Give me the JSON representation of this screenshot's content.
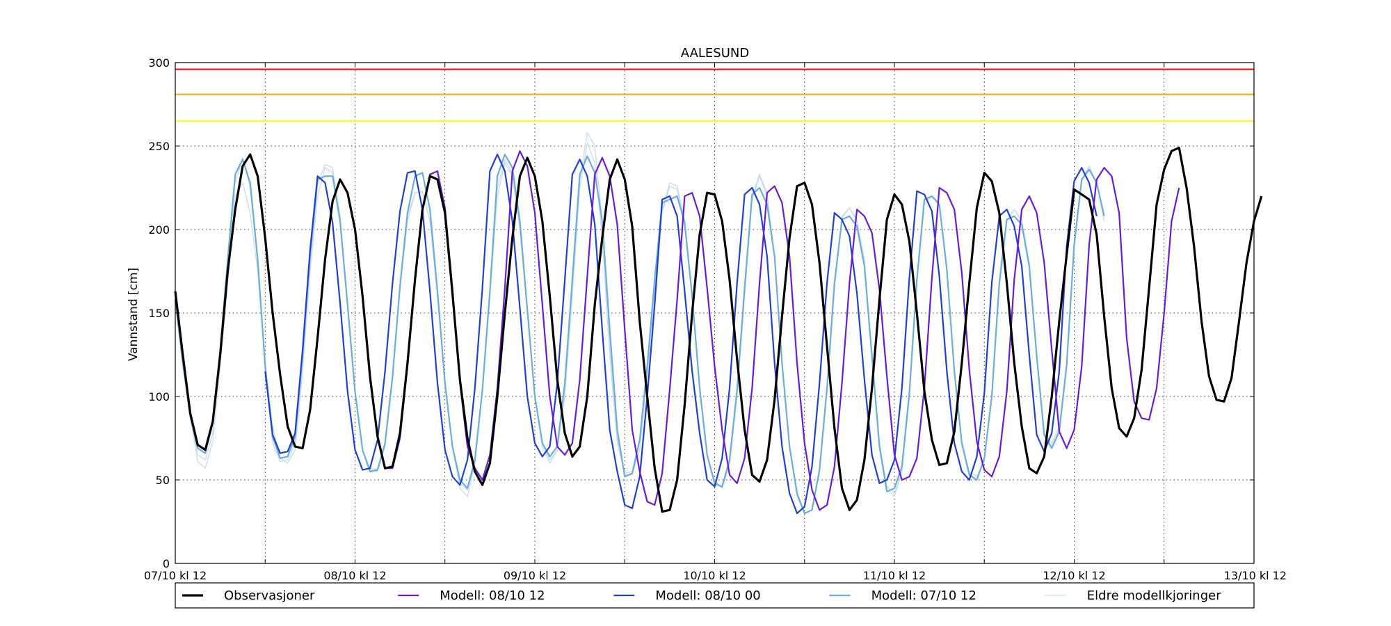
{
  "chart_data": {
    "type": "line",
    "title": "AALESUND",
    "xlabel": "",
    "ylabel": "Vannstand [cm]",
    "ylim": [
      0,
      300
    ],
    "yticks": [
      0,
      50,
      100,
      150,
      200,
      250,
      300
    ],
    "xlim": [
      0,
      144
    ],
    "xticks": [
      {
        "value": 0,
        "label": "07/10 kl 12"
      },
      {
        "value": 24,
        "label": "08/10 kl 12"
      },
      {
        "value": 48,
        "label": "09/10 kl 12"
      },
      {
        "value": 72,
        "label": "10/10 kl 12"
      },
      {
        "value": 96,
        "label": "11/10 kl 12"
      },
      {
        "value": 120,
        "label": "12/10 kl 12"
      },
      {
        "value": 144,
        "label": "13/10 kl 12"
      }
    ],
    "minor_xticks": [
      12,
      36,
      60,
      84,
      108,
      132
    ],
    "grid": true,
    "legend_position": "bottom",
    "threshold_lines": [
      {
        "value": 296,
        "color": "#ff0000"
      },
      {
        "value": 281,
        "color": "#ffa500"
      },
      {
        "value": 265,
        "color": "#ffff00"
      }
    ],
    "series": [
      {
        "name": "Eldre modellkjoringer",
        "color": "#c6dbef",
        "width": 1.3,
        "x_start": 0,
        "values": [
          158,
          120,
          88,
          61,
          57,
          73,
          118,
          168,
          220,
          228,
          210,
          175,
          120,
          82,
          63,
          60,
          68,
          115,
          175,
          220,
          237,
          234,
          205,
          155,
          102,
          68,
          57,
          56,
          70,
          110,
          165,
          205,
          222,
          223,
          205,
          160,
          110,
          70,
          48,
          44,
          60,
          103,
          160,
          220,
          240,
          232,
          200,
          150,
          100,
          72,
          62,
          68,
          100,
          160,
          225,
          252,
          240,
          195,
          125,
          72,
          54,
          55,
          68,
          112,
          165,
          210,
          226,
          224,
          205,
          160,
          105,
          65,
          50,
          45,
          60,
          100,
          160,
          218,
          232,
          220,
          183,
          120,
          70,
          40,
          30,
          32,
          55,
          105,
          165,
          207,
          213,
          205,
          180,
          125,
          72,
          46,
          42,
          55,
          100,
          168,
          215,
          220,
          215,
          175,
          115,
          73,
          55,
          52,
          62,
          100,
          165,
          205,
          212,
          205,
          180,
          125,
          78,
          72,
          82,
          120,
          190,
          230,
          238,
          228,
          205
        ]
      },
      {
        "name": "Eldre modellkjoringer",
        "color": "#c6dbef",
        "width": 1.3,
        "x_start": 0,
        "values": [
          158,
          120,
          88,
          65,
          62,
          78,
          122,
          175,
          228,
          243,
          225,
          180,
          115,
          72,
          61,
          62,
          72,
          118,
          178,
          227,
          239,
          237,
          208,
          157,
          103,
          68,
          56,
          55,
          70,
          111,
          166,
          208,
          222,
          222,
          205,
          160,
          108,
          70,
          45,
          40,
          60,
          102,
          162,
          225,
          242,
          234,
          202,
          150,
          100,
          70,
          60,
          68,
          102,
          162,
          230,
          258,
          250,
          205,
          130,
          75,
          53,
          53,
          68,
          112,
          165,
          212,
          228,
          226,
          206,
          160,
          105,
          65,
          48,
          45,
          60,
          102,
          162,
          220,
          233,
          222,
          184,
          120,
          70,
          42,
          30,
          32,
          55,
          105,
          165,
          208,
          213,
          206,
          182,
          125,
          72,
          44,
          40,
          55,
          100,
          168,
          218,
          220,
          216,
          176,
          115,
          72,
          54,
          50,
          62,
          100,
          165,
          206,
          212,
          206,
          180,
          125,
          78,
          70,
          80,
          120,
          190,
          230,
          238,
          228,
          205
        ]
      },
      {
        "name": "Modell: 07/10 12",
        "color": "#6baed6",
        "width": 2.2,
        "x_start": 0,
        "values": [
          158,
          120,
          88,
          69,
          66,
          84,
          128,
          182,
          233,
          242,
          228,
          182,
          118,
          76,
          63,
          64,
          76,
          125,
          185,
          230,
          232,
          232,
          205,
          155,
          103,
          68,
          55,
          56,
          72,
          112,
          166,
          210,
          232,
          234,
          212,
          163,
          108,
          70,
          50,
          45,
          62,
          104,
          163,
          232,
          245,
          237,
          205,
          152,
          100,
          72,
          64,
          70,
          108,
          170,
          233,
          244,
          234,
          205,
          140,
          80,
          52,
          54,
          74,
          118,
          170,
          216,
          218,
          220,
          204,
          160,
          105,
          65,
          48,
          46,
          62,
          104,
          165,
          221,
          225,
          215,
          184,
          120,
          70,
          42,
          30,
          32,
          56,
          105,
          168,
          206,
          208,
          202,
          178,
          124,
          70,
          43,
          45,
          58,
          102,
          170,
          218,
          220,
          215,
          176,
          115,
          72,
          53,
          50,
          63,
          100,
          168,
          206,
          208,
          203,
          178,
          124,
          77,
          69,
          79,
          119,
          191,
          230,
          236,
          228,
          208
        ]
      },
      {
        "name": "Modell: 08/10 00",
        "color": "#2040d0",
        "width": 2.2,
        "x_start": 12,
        "values": [
          115,
          77,
          66,
          67,
          78,
          128,
          188,
          232,
          228,
          204,
          156,
          103,
          68,
          56,
          57,
          74,
          115,
          168,
          211,
          234,
          235,
          212,
          163,
          108,
          68,
          52,
          47,
          62,
          105,
          165,
          235,
          245,
          235,
          205,
          153,
          100,
          72,
          64,
          70,
          108,
          170,
          233,
          242,
          232,
          203,
          140,
          80,
          55,
          35,
          33,
          52,
          100,
          155,
          218,
          220,
          208,
          163,
          115,
          78,
          50,
          46,
          63,
          105,
          168,
          221,
          225,
          215,
          184,
          120,
          70,
          42,
          30,
          34,
          58,
          108,
          168,
          210,
          206,
          196,
          162,
          110,
          65,
          48,
          50,
          62,
          105,
          171,
          223,
          221,
          211,
          172,
          115,
          72,
          55,
          50,
          64,
          102,
          168,
          208,
          212,
          202,
          178,
          125,
          77,
          67,
          78,
          115,
          190,
          229,
          237,
          228,
          208
        ]
      },
      {
        "name": "Modell: 08/10 12",
        "color": "#6a1cd4",
        "width": 2.2,
        "x_start": 24,
        "values": [
          200,
          160,
          110,
          76,
          57,
          57,
          75,
          118,
          170,
          212,
          233,
          235,
          213,
          165,
          108,
          70,
          57,
          50,
          65,
          105,
          165,
          235,
          247,
          238,
          210,
          155,
          100,
          70,
          65,
          72,
          110,
          172,
          233,
          243,
          232,
          203,
          140,
          80,
          55,
          37,
          35,
          54,
          104,
          158,
          220,
          222,
          208,
          165,
          118,
          80,
          53,
          48,
          63,
          105,
          168,
          222,
          226,
          216,
          184,
          120,
          72,
          44,
          32,
          35,
          58,
          108,
          168,
          212,
          208,
          198,
          164,
          112,
          65,
          50,
          52,
          63,
          105,
          171,
          225,
          222,
          212,
          174,
          116,
          73,
          56,
          52,
          64,
          103,
          170,
          212,
          220,
          210,
          180,
          128,
          79,
          69,
          80,
          118,
          191,
          230,
          237,
          232,
          210,
          135,
          97,
          87,
          86,
          105,
          150,
          205,
          225
        ]
      },
      {
        "name": "Observasjoner",
        "color": "#000000",
        "width": 3.2,
        "x_start": 0,
        "values": [
          163,
          125,
          90,
          71,
          68,
          85,
          125,
          175,
          212,
          238,
          245,
          232,
          195,
          150,
          113,
          82,
          70,
          69,
          92,
          135,
          182,
          217,
          230,
          222,
          200,
          160,
          112,
          76,
          57,
          58,
          78,
          120,
          170,
          212,
          232,
          230,
          210,
          162,
          110,
          75,
          55,
          47,
          60,
          100,
          150,
          195,
          232,
          243,
          232,
          205,
          160,
          110,
          78,
          64,
          70,
          100,
          155,
          195,
          230,
          242,
          230,
          202,
          145,
          100,
          57,
          31,
          32,
          50,
          95,
          150,
          197,
          222,
          221,
          205,
          170,
          122,
          80,
          53,
          49,
          62,
          98,
          148,
          195,
          226,
          228,
          215,
          180,
          130,
          81,
          45,
          32,
          38,
          62,
          105,
          158,
          206,
          221,
          215,
          193,
          150,
          103,
          74,
          59,
          60,
          79,
          120,
          168,
          213,
          234,
          229,
          210,
          168,
          120,
          82,
          57,
          54,
          64,
          100,
          145,
          185,
          224,
          221,
          218,
          197,
          148,
          105,
          81,
          76,
          87,
          116,
          165,
          215,
          236,
          247,
          249,
          225,
          190,
          145,
          112,
          98,
          97,
          111,
          145,
          180,
          205,
          220
        ]
      }
    ]
  },
  "legend": [
    {
      "label": "Observasjoner",
      "color": "#000000",
      "width": 3.2
    },
    {
      "label": "Modell: 08/10 12",
      "color": "#6a1cd4",
      "width": 2.2
    },
    {
      "label": "Modell: 08/10 00",
      "color": "#2040d0",
      "width": 2.2
    },
    {
      "label": "Modell: 07/10 12",
      "color": "#6baed6",
      "width": 2.2
    },
    {
      "label": "Eldre modellkjoringer",
      "color": "#c6dbef",
      "width": 1.3
    }
  ]
}
